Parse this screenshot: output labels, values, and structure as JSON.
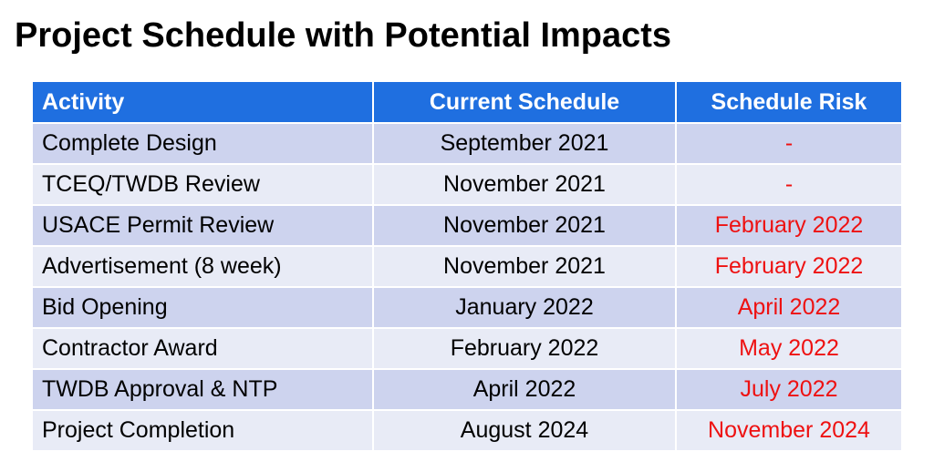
{
  "title": "Project Schedule with Potential Impacts",
  "table": {
    "headers": [
      "Activity",
      "Current Schedule",
      "Schedule Risk"
    ],
    "rows": [
      {
        "activity": "Complete Design",
        "current": "September 2021",
        "risk": "-"
      },
      {
        "activity": "TCEQ/TWDB Review",
        "current": "November 2021",
        "risk": "-"
      },
      {
        "activity": "USACE Permit Review",
        "current": "November 2021",
        "risk": "February 2022"
      },
      {
        "activity": "Advertisement (8 week)",
        "current": "November 2021",
        "risk": "February 2022"
      },
      {
        "activity": "Bid Opening",
        "current": "January 2022",
        "risk": "April 2022"
      },
      {
        "activity": "Contractor Award",
        "current": "February 2022",
        "risk": "May 2022"
      },
      {
        "activity": "TWDB Approval & NTP",
        "current": "April 2022",
        "risk": "July 2022"
      },
      {
        "activity": "Project Completion",
        "current": "August 2024",
        "risk": "November 2024"
      }
    ]
  },
  "colors": {
    "header_bg": "#1f6fe0",
    "row_odd_bg": "#cdd3ee",
    "row_even_bg": "#e8ebf6",
    "risk_text": "#ee1111"
  }
}
